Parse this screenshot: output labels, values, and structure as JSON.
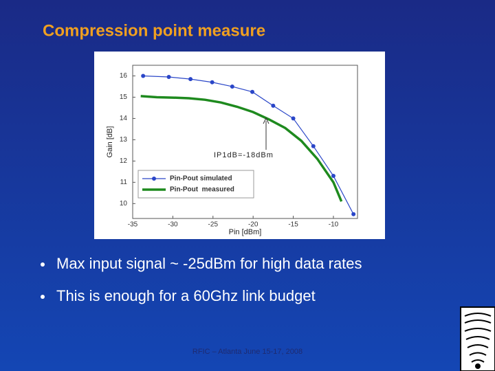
{
  "slide": {
    "title": "Compression point measure",
    "bullets": [
      "Max input signal ~ -25dBm for high data rates",
      "This is enough for a 60Ghz link budget"
    ],
    "footer": "RFIC – Atlanta June 15-17, 2008"
  },
  "chart_data": {
    "type": "line",
    "xlabel": "Pin [dBm]",
    "ylabel": "Gain [dB]",
    "annotation": "IP1dB=-18dBm",
    "xlim": [
      -35,
      -7
    ],
    "ylim": [
      9.3,
      16.5
    ],
    "xticks": [
      -35,
      -30,
      -25,
      -20,
      -15,
      -10
    ],
    "yticks": [
      10,
      11,
      12,
      13,
      14,
      15,
      16
    ],
    "grid": false,
    "legend": "lower left",
    "series": [
      {
        "name": "Pin-Pout simulated",
        "color": "#2a46c8",
        "marker": true,
        "x": [
          -33.7,
          -30.5,
          -27.8,
          -25.1,
          -22.6,
          -20.1,
          -17.5,
          -15,
          -12.5,
          -10,
          -7.5
        ],
        "values": [
          16.0,
          15.95,
          15.85,
          15.7,
          15.5,
          15.25,
          14.6,
          14.0,
          12.7,
          11.3,
          9.5
        ]
      },
      {
        "name": "Pin-Pout  measured",
        "color": "#1e8a1e",
        "marker": false,
        "x": [
          -34,
          -32,
          -30,
          -28,
          -26,
          -24,
          -22,
          -20,
          -18,
          -16,
          -14,
          -12,
          -10,
          -9
        ],
        "values": [
          15.05,
          15.0,
          14.98,
          14.95,
          14.88,
          14.75,
          14.55,
          14.3,
          13.95,
          13.55,
          12.95,
          12.1,
          11.0,
          10.1
        ]
      }
    ]
  }
}
